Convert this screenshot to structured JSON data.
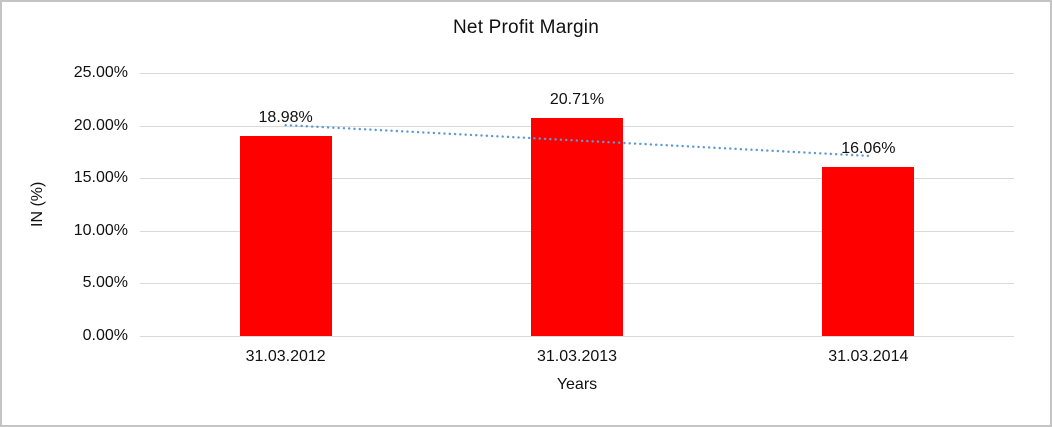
{
  "frame": {
    "background": "#ffffff",
    "border_color": "#c4c4c4"
  },
  "chart_data": {
    "type": "bar",
    "title": "Net Profit Margin",
    "xlabel": "Years",
    "ylabel": "IN (%)",
    "categories": [
      "31.03.2012",
      "31.03.2013",
      "31.03.2014"
    ],
    "values": [
      18.98,
      20.71,
      16.06
    ],
    "data_labels": [
      "18.98%",
      "20.71%",
      "16.06%"
    ],
    "ylim": [
      0,
      25
    ],
    "yticks": [
      0,
      5,
      10,
      15,
      20,
      25
    ],
    "ytick_labels": [
      "0.00%",
      "5.00%",
      "10.00%",
      "15.00%",
      "20.00%",
      "25.00%"
    ],
    "grid": true,
    "legend": "none",
    "bar_color": "#FF0000",
    "gridline_color": "#D9D9D9",
    "text_color": "#111111",
    "trendline": {
      "type": "linear",
      "style": "dotted",
      "color": "#5B9BD5"
    }
  }
}
